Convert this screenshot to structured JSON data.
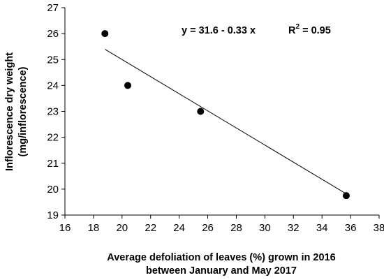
{
  "chart_data": {
    "type": "scatter",
    "title": "",
    "xlabel_lines": [
      "Average defoliation of leaves (%) grown in 2016",
      "between January and May 2017"
    ],
    "ylabel_lines": [
      "Inflorescence dry weight",
      "(mg/inflorescence)"
    ],
    "xlim": [
      16,
      38
    ],
    "ylim": [
      19,
      27
    ],
    "xticks": [
      16,
      18,
      20,
      22,
      24,
      26,
      28,
      30,
      32,
      34,
      36,
      38
    ],
    "yticks": [
      19,
      20,
      21,
      22,
      23,
      24,
      25,
      26,
      27
    ],
    "points": [
      {
        "x": 18.8,
        "y": 26.0
      },
      {
        "x": 20.4,
        "y": 24.0
      },
      {
        "x": 25.5,
        "y": 23.0
      },
      {
        "x": 35.7,
        "y": 19.75
      }
    ],
    "trendline": {
      "x_start": 18.8,
      "x_end": 35.7,
      "intercept": 31.6,
      "slope": -0.33
    },
    "equation": "y = 31.6 - 0.33 x",
    "r2_prefix": "R",
    "r2_exponent": "2",
    "r2_value": " = 0.95",
    "legend": "none",
    "grid": false
  }
}
